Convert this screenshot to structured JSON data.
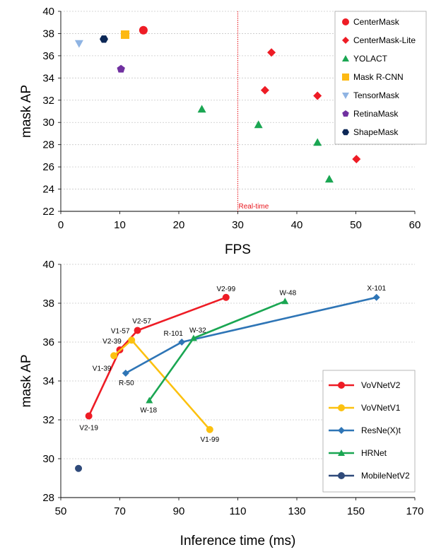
{
  "chart_data": [
    {
      "type": "scatter",
      "title": "",
      "xlabel": "FPS",
      "ylabel": "mask AP",
      "xlim": [
        0,
        60
      ],
      "ylim": [
        22,
        40
      ],
      "xticks": [
        0,
        10,
        20,
        30,
        40,
        50,
        60
      ],
      "yticks": [
        22,
        24,
        26,
        28,
        30,
        32,
        34,
        36,
        38,
        40
      ],
      "grid": "horizontal-dotted",
      "legend_position": "top-right",
      "annotation": {
        "label": "Real-time",
        "x": 30,
        "color": "#e8141b"
      },
      "series": [
        {
          "name": "CenterMask",
          "marker": "circle",
          "color": "#ee1c25",
          "points": [
            [
              14.0,
              38.3
            ]
          ]
        },
        {
          "name": "CenterMask-Lite",
          "marker": "diamond",
          "color": "#ee1c25",
          "points": [
            [
              35.7,
              36.3
            ],
            [
              34.6,
              32.9
            ],
            [
              43.5,
              32.4
            ],
            [
              50.1,
              26.7
            ]
          ]
        },
        {
          "name": "YOLACT",
          "marker": "triangle",
          "color": "#1aa652",
          "points": [
            [
              23.9,
              31.2
            ],
            [
              33.5,
              29.8
            ],
            [
              43.5,
              28.2
            ],
            [
              45.5,
              24.9
            ]
          ]
        },
        {
          "name": "Mask R-CNN",
          "marker": "square",
          "color": "#fdb913",
          "points": [
            [
              10.9,
              37.9
            ]
          ]
        },
        {
          "name": "TensorMask",
          "marker": "triangle-down",
          "color": "#8fb4e3",
          "points": [
            [
              3.1,
              37.1
            ]
          ]
        },
        {
          "name": "RetinaMask",
          "marker": "pentagon",
          "color": "#7030a0",
          "points": [
            [
              10.2,
              34.8
            ]
          ]
        },
        {
          "name": "ShapeMask",
          "marker": "hexagon",
          "color": "#0c2756",
          "points": [
            [
              7.3,
              37.5
            ]
          ]
        }
      ]
    },
    {
      "type": "line",
      "title": "",
      "xlabel": "Inference time (ms)",
      "ylabel": "mask AP",
      "xlim": [
        50,
        170
      ],
      "ylim": [
        28,
        40
      ],
      "xticks": [
        50,
        70,
        90,
        110,
        130,
        150,
        170
      ],
      "yticks": [
        28,
        30,
        32,
        34,
        36,
        38,
        40
      ],
      "grid": "horizontal-dotted",
      "legend_position": "bottom-right",
      "series": [
        {
          "name": "VoVNetV2",
          "marker": "circle",
          "color": "#ee1c25",
          "points": [
            {
              "x": 59.5,
              "y": 32.2,
              "label": "V2-19"
            },
            {
              "x": 70.0,
              "y": 35.6,
              "label": "V2-39"
            },
            {
              "x": 76.0,
              "y": 36.6,
              "label": "V2-57"
            },
            {
              "x": 106.0,
              "y": 38.3,
              "label": "V2-99"
            }
          ]
        },
        {
          "name": "VoVNetV1",
          "marker": "circle",
          "color": "#fcc10f",
          "points": [
            {
              "x": 68.0,
              "y": 35.3,
              "label": "V1-39"
            },
            {
              "x": 74.0,
              "y": 36.1,
              "label": "V1-57"
            },
            {
              "x": 100.5,
              "y": 31.5,
              "label": "V1-99"
            }
          ]
        },
        {
          "name": "ResNe(X)t",
          "marker": "diamond",
          "color": "#2e75b6",
          "points": [
            {
              "x": 72.0,
              "y": 34.4,
              "label": "R-50"
            },
            {
              "x": 91.0,
              "y": 36.0,
              "label": "R-101"
            },
            {
              "x": 157.0,
              "y": 38.3,
              "label": "X-101"
            }
          ]
        },
        {
          "name": "HRNet",
          "marker": "triangle",
          "color": "#1aa652",
          "points": [
            {
              "x": 80.0,
              "y": 33.0,
              "label": "W-18"
            },
            {
              "x": 95.0,
              "y": 36.2,
              "label": "W-32"
            },
            {
              "x": 126.0,
              "y": 38.1,
              "label": "W-48"
            }
          ]
        },
        {
          "name": "MobileNetV2",
          "marker": "circle",
          "color": "#2f4a7a",
          "points": [
            {
              "x": 56.0,
              "y": 29.5,
              "label": ""
            }
          ]
        }
      ]
    }
  ]
}
